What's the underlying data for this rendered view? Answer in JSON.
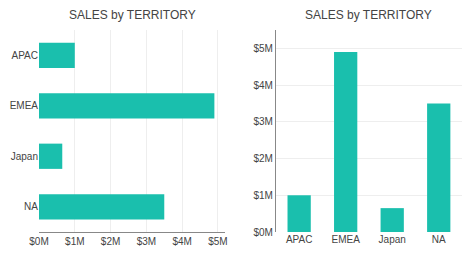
{
  "chart_data": [
    {
      "type": "bar",
      "orientation": "horizontal",
      "title": "SALES by TERRITORY",
      "categories": [
        "APAC",
        "EMEA",
        "Japan",
        "NA"
      ],
      "values": [
        1.0,
        4.9,
        0.65,
        3.5
      ],
      "color": "#1abfad",
      "xlim": [
        0,
        5.2
      ],
      "xticks": [
        {
          "value": 0,
          "label": "$0M"
        },
        {
          "value": 1,
          "label": "$1M"
        },
        {
          "value": 2,
          "label": "$2M"
        },
        {
          "value": 3,
          "label": "$3M"
        },
        {
          "value": 4,
          "label": "$4M"
        },
        {
          "value": 5,
          "label": "$5M"
        }
      ],
      "grid": true
    },
    {
      "type": "bar",
      "title": "SALES by TERRITORY",
      "categories": [
        "APAC",
        "EMEA",
        "Japan",
        "NA"
      ],
      "values": [
        1.0,
        4.9,
        0.65,
        3.5
      ],
      "color": "#1abfad",
      "ylim": [
        0,
        5.5
      ],
      "yticks": [
        {
          "value": 0,
          "label": "$0M"
        },
        {
          "value": 1,
          "label": "$1M"
        },
        {
          "value": 2,
          "label": "$2M"
        },
        {
          "value": 3,
          "label": "$3M"
        },
        {
          "value": 4,
          "label": "$4M"
        },
        {
          "value": 5,
          "label": "$5M"
        }
      ],
      "grid": true
    }
  ]
}
